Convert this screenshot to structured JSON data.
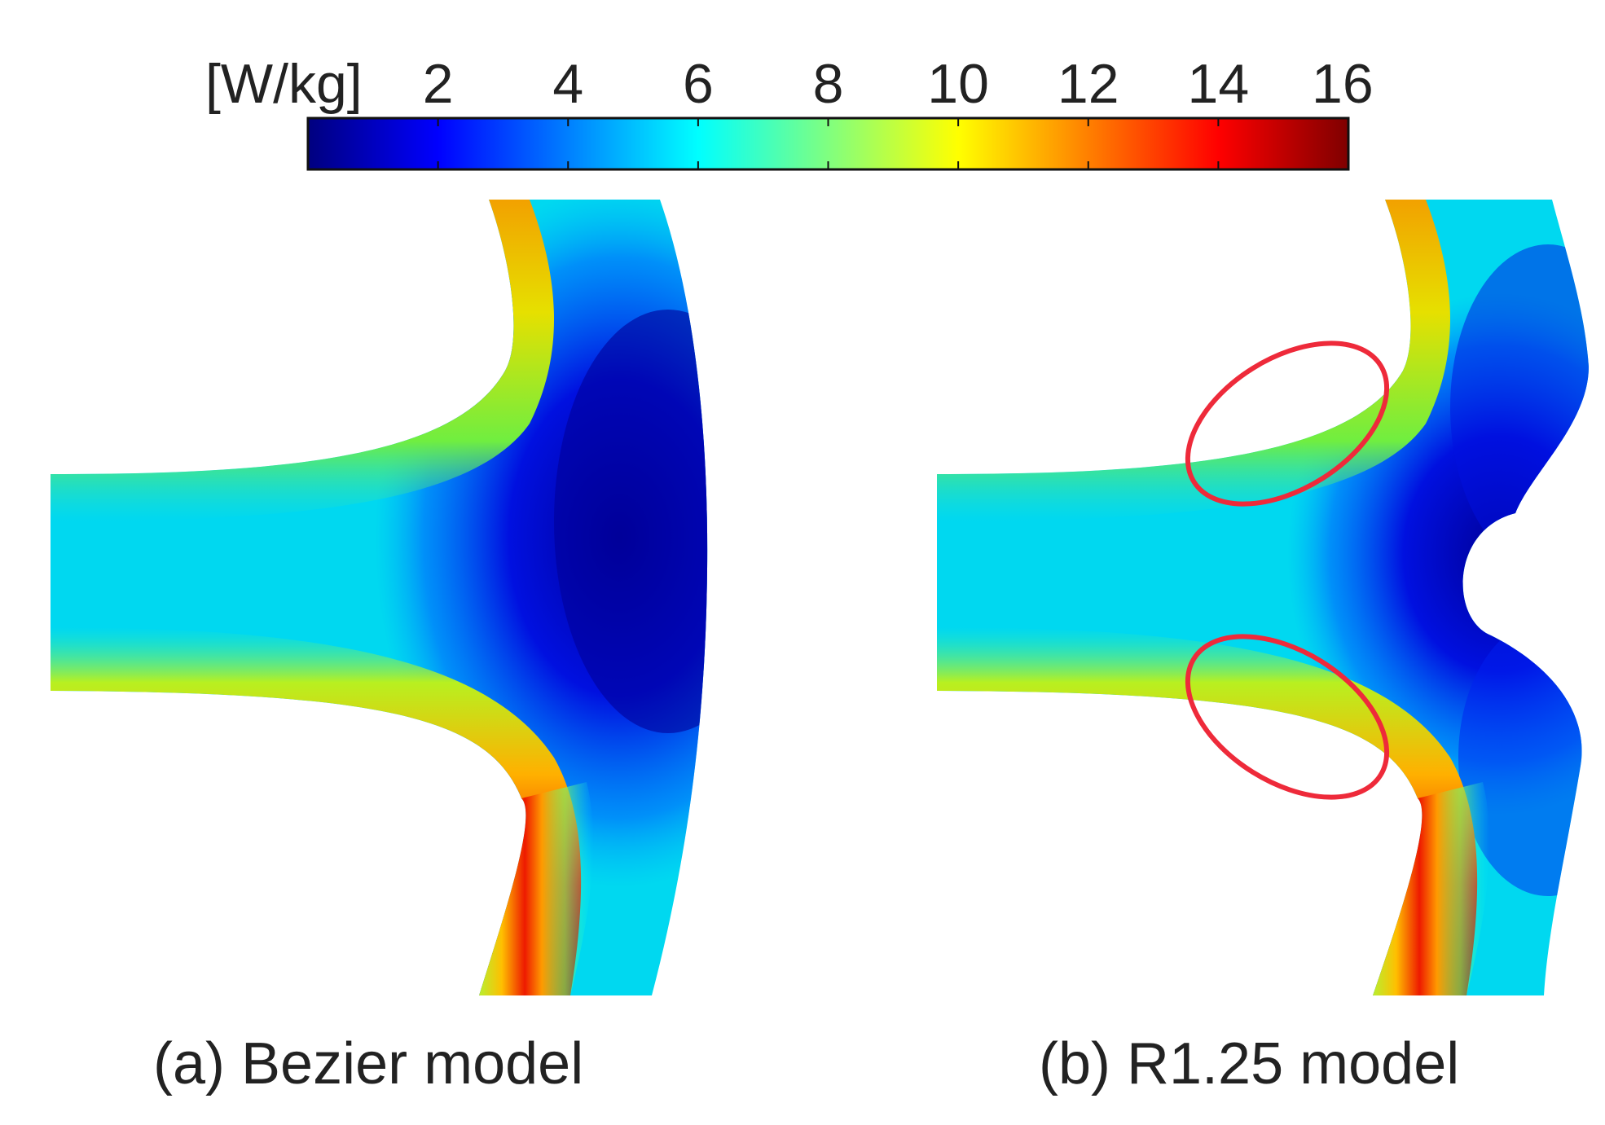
{
  "colorbar": {
    "unit": "[W/kg]",
    "ticks": [
      "2",
      "4",
      "6",
      "8",
      "10",
      "12",
      "14",
      "16"
    ],
    "min": 0,
    "max": 16,
    "colormap": [
      "#00007f",
      "#0000ff",
      "#00ffff",
      "#ffff00",
      "#ff0000",
      "#7f0000"
    ]
  },
  "panels": [
    {
      "caption": "(a) Bezier model"
    },
    {
      "caption": "(b) R1.25 model",
      "highlight_color": "#ee2a3a"
    }
  ]
}
